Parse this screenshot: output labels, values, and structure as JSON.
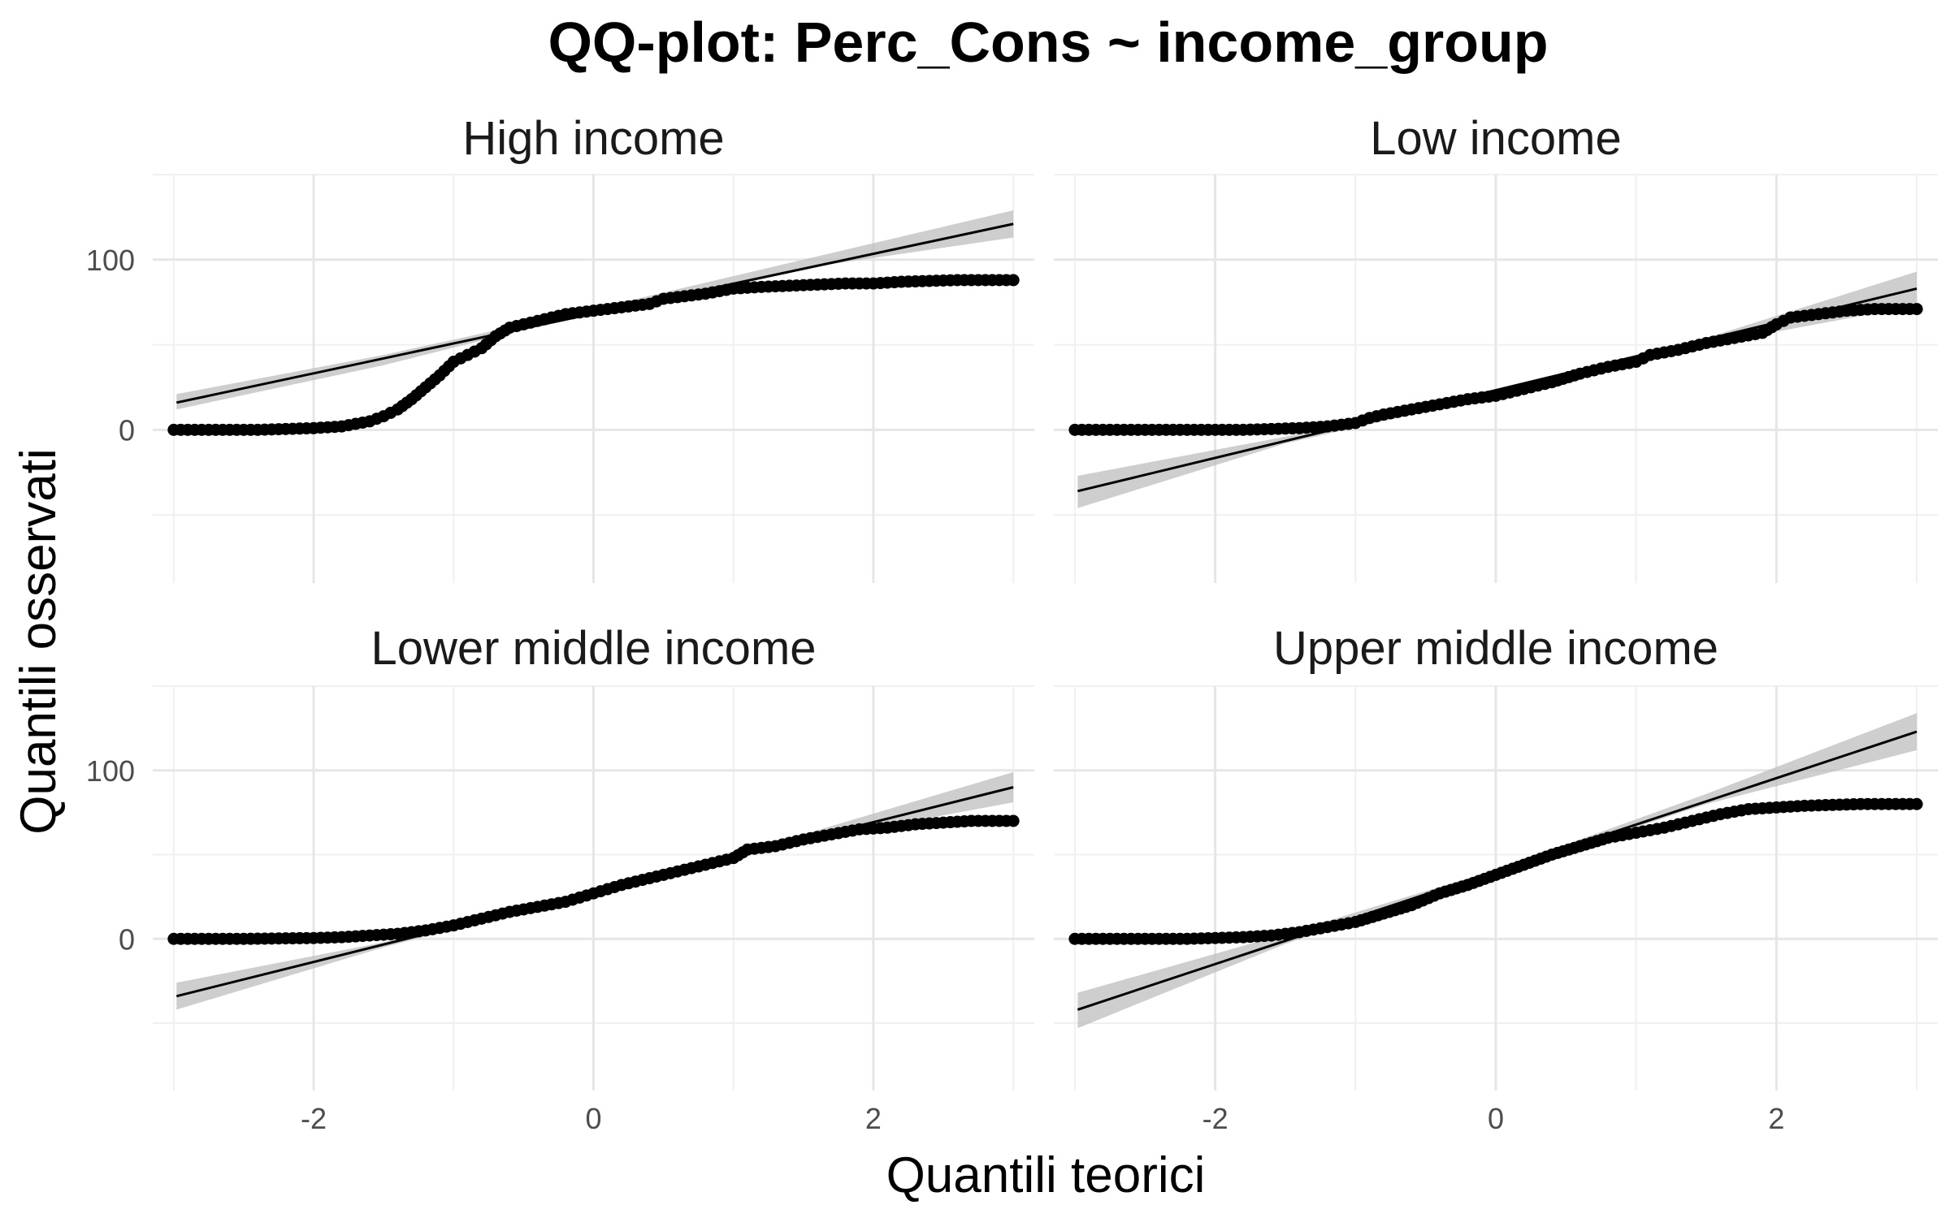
{
  "chart_data": {
    "type": "scatter",
    "title": "QQ-plot: Perc_Cons ~ income_group",
    "xlabel": "Quantili teorici",
    "ylabel": "Quantili osservati",
    "x_ticks": [
      -2,
      0,
      2
    ],
    "y_ticks": [
      0,
      100
    ],
    "xlim": [
      -3.15,
      3.15
    ],
    "ylim": [
      -90,
      150
    ],
    "grid": true,
    "point_color": "#000000",
    "line_color": "#000000",
    "band_color": "#bdbdbd",
    "panels": [
      {
        "label": "High income",
        "points": [
          [
            -3.0,
            0
          ],
          [
            -2.8,
            0
          ],
          [
            -2.6,
            0
          ],
          [
            -2.4,
            0
          ],
          [
            -2.2,
            0.5
          ],
          [
            -2.0,
            1
          ],
          [
            -1.8,
            2
          ],
          [
            -1.6,
            5
          ],
          [
            -1.5,
            8
          ],
          [
            -1.4,
            12
          ],
          [
            -1.3,
            18
          ],
          [
            -1.2,
            25
          ],
          [
            -1.1,
            32
          ],
          [
            -1.0,
            40
          ],
          [
            -0.9,
            44
          ],
          [
            -0.8,
            48
          ],
          [
            -0.7,
            55
          ],
          [
            -0.6,
            60
          ],
          [
            -0.5,
            62
          ],
          [
            -0.4,
            64
          ],
          [
            -0.3,
            66
          ],
          [
            -0.2,
            68
          ],
          [
            -0.1,
            69
          ],
          [
            0.0,
            70
          ],
          [
            0.2,
            72
          ],
          [
            0.4,
            74
          ],
          [
            0.5,
            77
          ],
          [
            0.6,
            78
          ],
          [
            0.8,
            80
          ],
          [
            1.0,
            83
          ],
          [
            1.2,
            84
          ],
          [
            1.5,
            85
          ],
          [
            1.8,
            86
          ],
          [
            2.0,
            86
          ],
          [
            2.2,
            87
          ],
          [
            2.4,
            87.5
          ],
          [
            2.6,
            88
          ],
          [
            2.8,
            88
          ],
          [
            3.0,
            88
          ]
        ],
        "line": [
          [
            -2.98,
            16
          ],
          [
            3.0,
            121
          ]
        ],
        "band": [
          [
            -2.98,
            12,
            21
          ],
          [
            -1.5,
            38,
            44
          ],
          [
            0,
            69,
            71
          ],
          [
            1.5,
            95,
            100
          ],
          [
            3.0,
            113,
            129
          ]
        ]
      },
      {
        "label": "Low income",
        "points": [
          [
            -3.0,
            0
          ],
          [
            -2.85,
            0
          ],
          [
            -2.75,
            0
          ],
          [
            -2.65,
            0
          ],
          [
            -2.5,
            0
          ],
          [
            -2.2,
            0
          ],
          [
            -2.0,
            0
          ],
          [
            -1.8,
            0
          ],
          [
            -1.6,
            0.5
          ],
          [
            -1.4,
            1
          ],
          [
            -1.2,
            2
          ],
          [
            -1.0,
            4
          ],
          [
            -0.9,
            7
          ],
          [
            -0.8,
            9
          ],
          [
            -0.6,
            12
          ],
          [
            -0.4,
            15
          ],
          [
            -0.2,
            18
          ],
          [
            0.0,
            20
          ],
          [
            0.2,
            24
          ],
          [
            0.4,
            28
          ],
          [
            0.6,
            33
          ],
          [
            0.8,
            37
          ],
          [
            1.0,
            40
          ],
          [
            1.1,
            44
          ],
          [
            1.3,
            47
          ],
          [
            1.5,
            51
          ],
          [
            1.7,
            54
          ],
          [
            1.9,
            57
          ],
          [
            2.0,
            62
          ],
          [
            2.1,
            66
          ],
          [
            2.3,
            68
          ],
          [
            2.5,
            70
          ],
          [
            2.7,
            71
          ],
          [
            2.85,
            71
          ],
          [
            3.0,
            71
          ]
        ],
        "line": [
          [
            -2.98,
            -36
          ],
          [
            3.0,
            83
          ]
        ],
        "band": [
          [
            -2.98,
            -46,
            -27
          ],
          [
            -1.5,
            -8,
            -4
          ],
          [
            0,
            20,
            22
          ],
          [
            1.5,
            50,
            54
          ],
          [
            3.0,
            73,
            93
          ]
        ]
      },
      {
        "label": "Lower middle income",
        "points": [
          [
            -3.0,
            0
          ],
          [
            -2.8,
            0
          ],
          [
            -2.5,
            0
          ],
          [
            -2.2,
            0.3
          ],
          [
            -2.0,
            0.5
          ],
          [
            -1.8,
            1
          ],
          [
            -1.6,
            2
          ],
          [
            -1.4,
            3
          ],
          [
            -1.2,
            5
          ],
          [
            -1.0,
            8
          ],
          [
            -0.8,
            12
          ],
          [
            -0.6,
            16
          ],
          [
            -0.4,
            19
          ],
          [
            -0.2,
            22
          ],
          [
            0.0,
            27
          ],
          [
            0.2,
            32
          ],
          [
            0.4,
            36
          ],
          [
            0.6,
            40
          ],
          [
            0.8,
            44
          ],
          [
            1.0,
            48
          ],
          [
            1.1,
            53
          ],
          [
            1.3,
            55
          ],
          [
            1.5,
            59
          ],
          [
            1.7,
            62
          ],
          [
            1.9,
            65
          ],
          [
            2.1,
            66
          ],
          [
            2.3,
            68
          ],
          [
            2.5,
            69
          ],
          [
            2.7,
            70
          ],
          [
            3.0,
            70
          ]
        ],
        "line": [
          [
            -2.98,
            -34
          ],
          [
            3.0,
            90
          ]
        ],
        "band": [
          [
            -2.98,
            -42,
            -26
          ],
          [
            -1.5,
            -5,
            -2
          ],
          [
            0,
            27,
            29
          ],
          [
            1.5,
            58,
            62
          ],
          [
            3.0,
            81,
            99
          ]
        ]
      },
      {
        "label": "Upper middle income",
        "points": [
          [
            -3.0,
            0
          ],
          [
            -2.8,
            0
          ],
          [
            -2.5,
            0
          ],
          [
            -2.2,
            0
          ],
          [
            -2.0,
            0.5
          ],
          [
            -1.8,
            1
          ],
          [
            -1.6,
            2
          ],
          [
            -1.4,
            4
          ],
          [
            -1.2,
            7
          ],
          [
            -1.0,
            10
          ],
          [
            -0.8,
            15
          ],
          [
            -0.6,
            20
          ],
          [
            -0.4,
            27
          ],
          [
            -0.2,
            32
          ],
          [
            0.0,
            38
          ],
          [
            0.2,
            44
          ],
          [
            0.4,
            50
          ],
          [
            0.6,
            55
          ],
          [
            0.8,
            60
          ],
          [
            1.0,
            63
          ],
          [
            1.2,
            66
          ],
          [
            1.4,
            70
          ],
          [
            1.6,
            74
          ],
          [
            1.8,
            77
          ],
          [
            2.0,
            78
          ],
          [
            2.2,
            79
          ],
          [
            2.4,
            79.5
          ],
          [
            2.6,
            80
          ],
          [
            2.8,
            80
          ],
          [
            3.0,
            80
          ]
        ],
        "line": [
          [
            -2.98,
            -42
          ],
          [
            3.0,
            123
          ]
        ],
        "band": [
          [
            -2.98,
            -53,
            -32
          ],
          [
            -1.5,
            -3,
            3
          ],
          [
            0,
            39,
            41
          ],
          [
            1.5,
            80,
            86
          ],
          [
            3.0,
            112,
            134
          ]
        ]
      }
    ]
  }
}
